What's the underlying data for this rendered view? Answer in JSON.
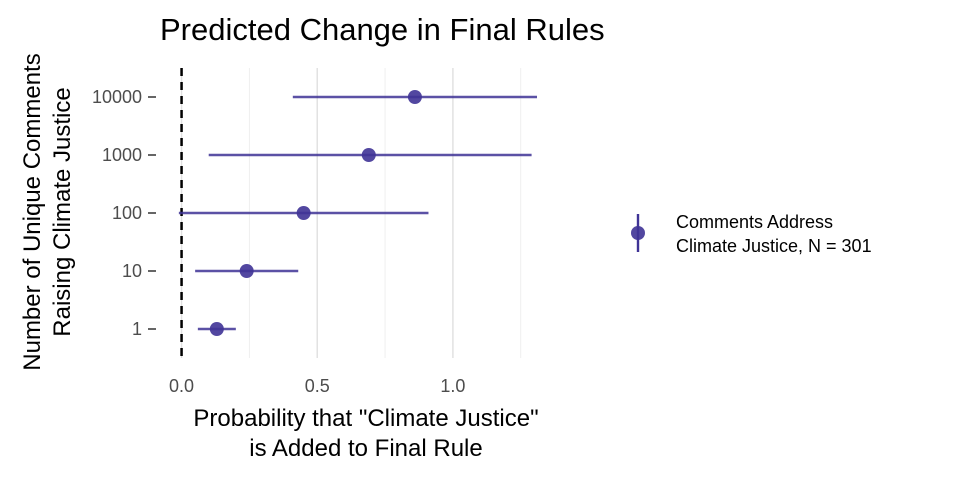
{
  "chart_data": {
    "type": "scatter",
    "title": "Predicted Change in Final Rules",
    "xlabel": [
      "Probability that \"Climate Justice\"",
      "is Added to Final Rule"
    ],
    "ylabel": [
      "Number of Unique Comments",
      "Raising Climate Justice"
    ],
    "x_ticks": [
      0.0,
      0.5,
      1.0
    ],
    "x_tick_labels": [
      "0.0",
      "0.5",
      "1.0"
    ],
    "xlim": [
      -0.05,
      1.38
    ],
    "y_categories": [
      "1",
      "10",
      "100",
      "1000",
      "10000"
    ],
    "reference_line_x": 0,
    "grid": true,
    "legend_position": "right",
    "series": [
      {
        "name": [
          "Comments Address",
          "Climate Justice, N = 301"
        ],
        "color": "#3f3396",
        "points": [
          {
            "y": "1",
            "x": 0.13,
            "low": 0.06,
            "high": 0.2
          },
          {
            "y": "10",
            "x": 0.24,
            "low": 0.05,
            "high": 0.43
          },
          {
            "y": "100",
            "x": 0.45,
            "low": -0.01,
            "high": 0.91
          },
          {
            "y": "1000",
            "x": 0.69,
            "low": 0.1,
            "high": 1.29
          },
          {
            "y": "10000",
            "x": 0.86,
            "low": 0.41,
            "high": 1.31
          }
        ]
      }
    ]
  }
}
